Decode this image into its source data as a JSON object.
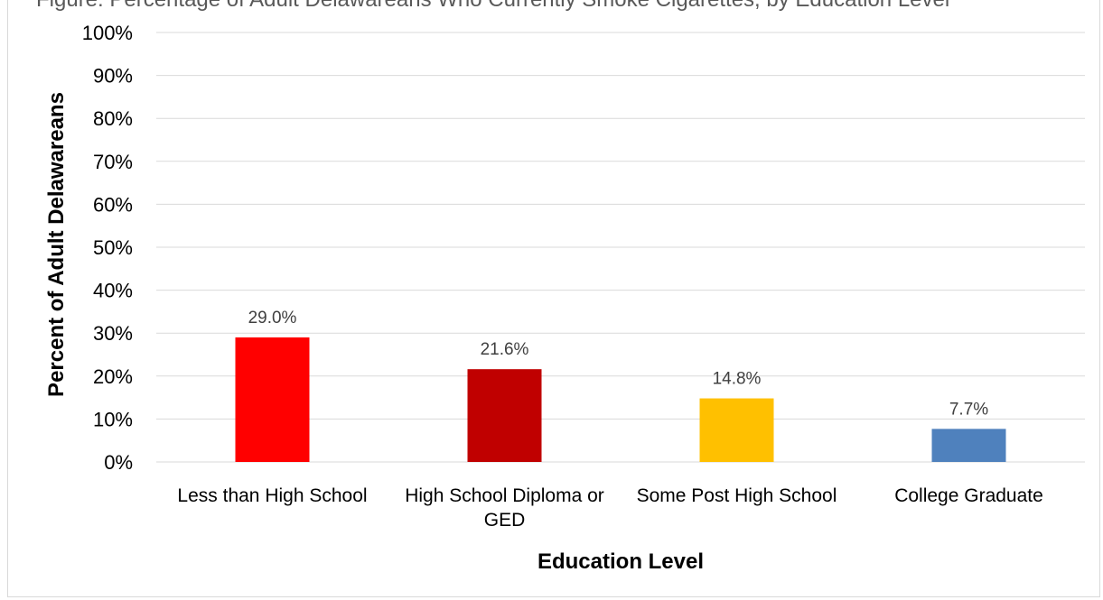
{
  "chart_data": {
    "type": "bar",
    "title": "Figure: Percentage of Adult Delawareans Who Currently Smoke Cigarettes, by Education Level",
    "categories": [
      "Less than High School",
      "High School Diploma or GED",
      "Some Post High School",
      "College Graduate"
    ],
    "category_lines": [
      [
        "Less than High School"
      ],
      [
        "High School Diploma or",
        "GED"
      ],
      [
        "Some Post High School"
      ],
      [
        "College Graduate"
      ]
    ],
    "values": [
      29.0,
      21.6,
      14.8,
      7.7
    ],
    "data_labels": [
      "29.0%",
      "21.6%",
      "14.8%",
      "7.7%"
    ],
    "bar_colors": [
      "#ff0000",
      "#c00000",
      "#ffc000",
      "#4f81bd"
    ],
    "xlabel": "Education Level",
    "ylabel": "Percent of Adult Delawareans",
    "ylim": [
      0,
      100
    ],
    "yticks": [
      "0%",
      "10%",
      "20%",
      "30%",
      "40%",
      "50%",
      "60%",
      "70%",
      "80%",
      "90%",
      "100%"
    ],
    "grid": true,
    "legend": "none"
  }
}
